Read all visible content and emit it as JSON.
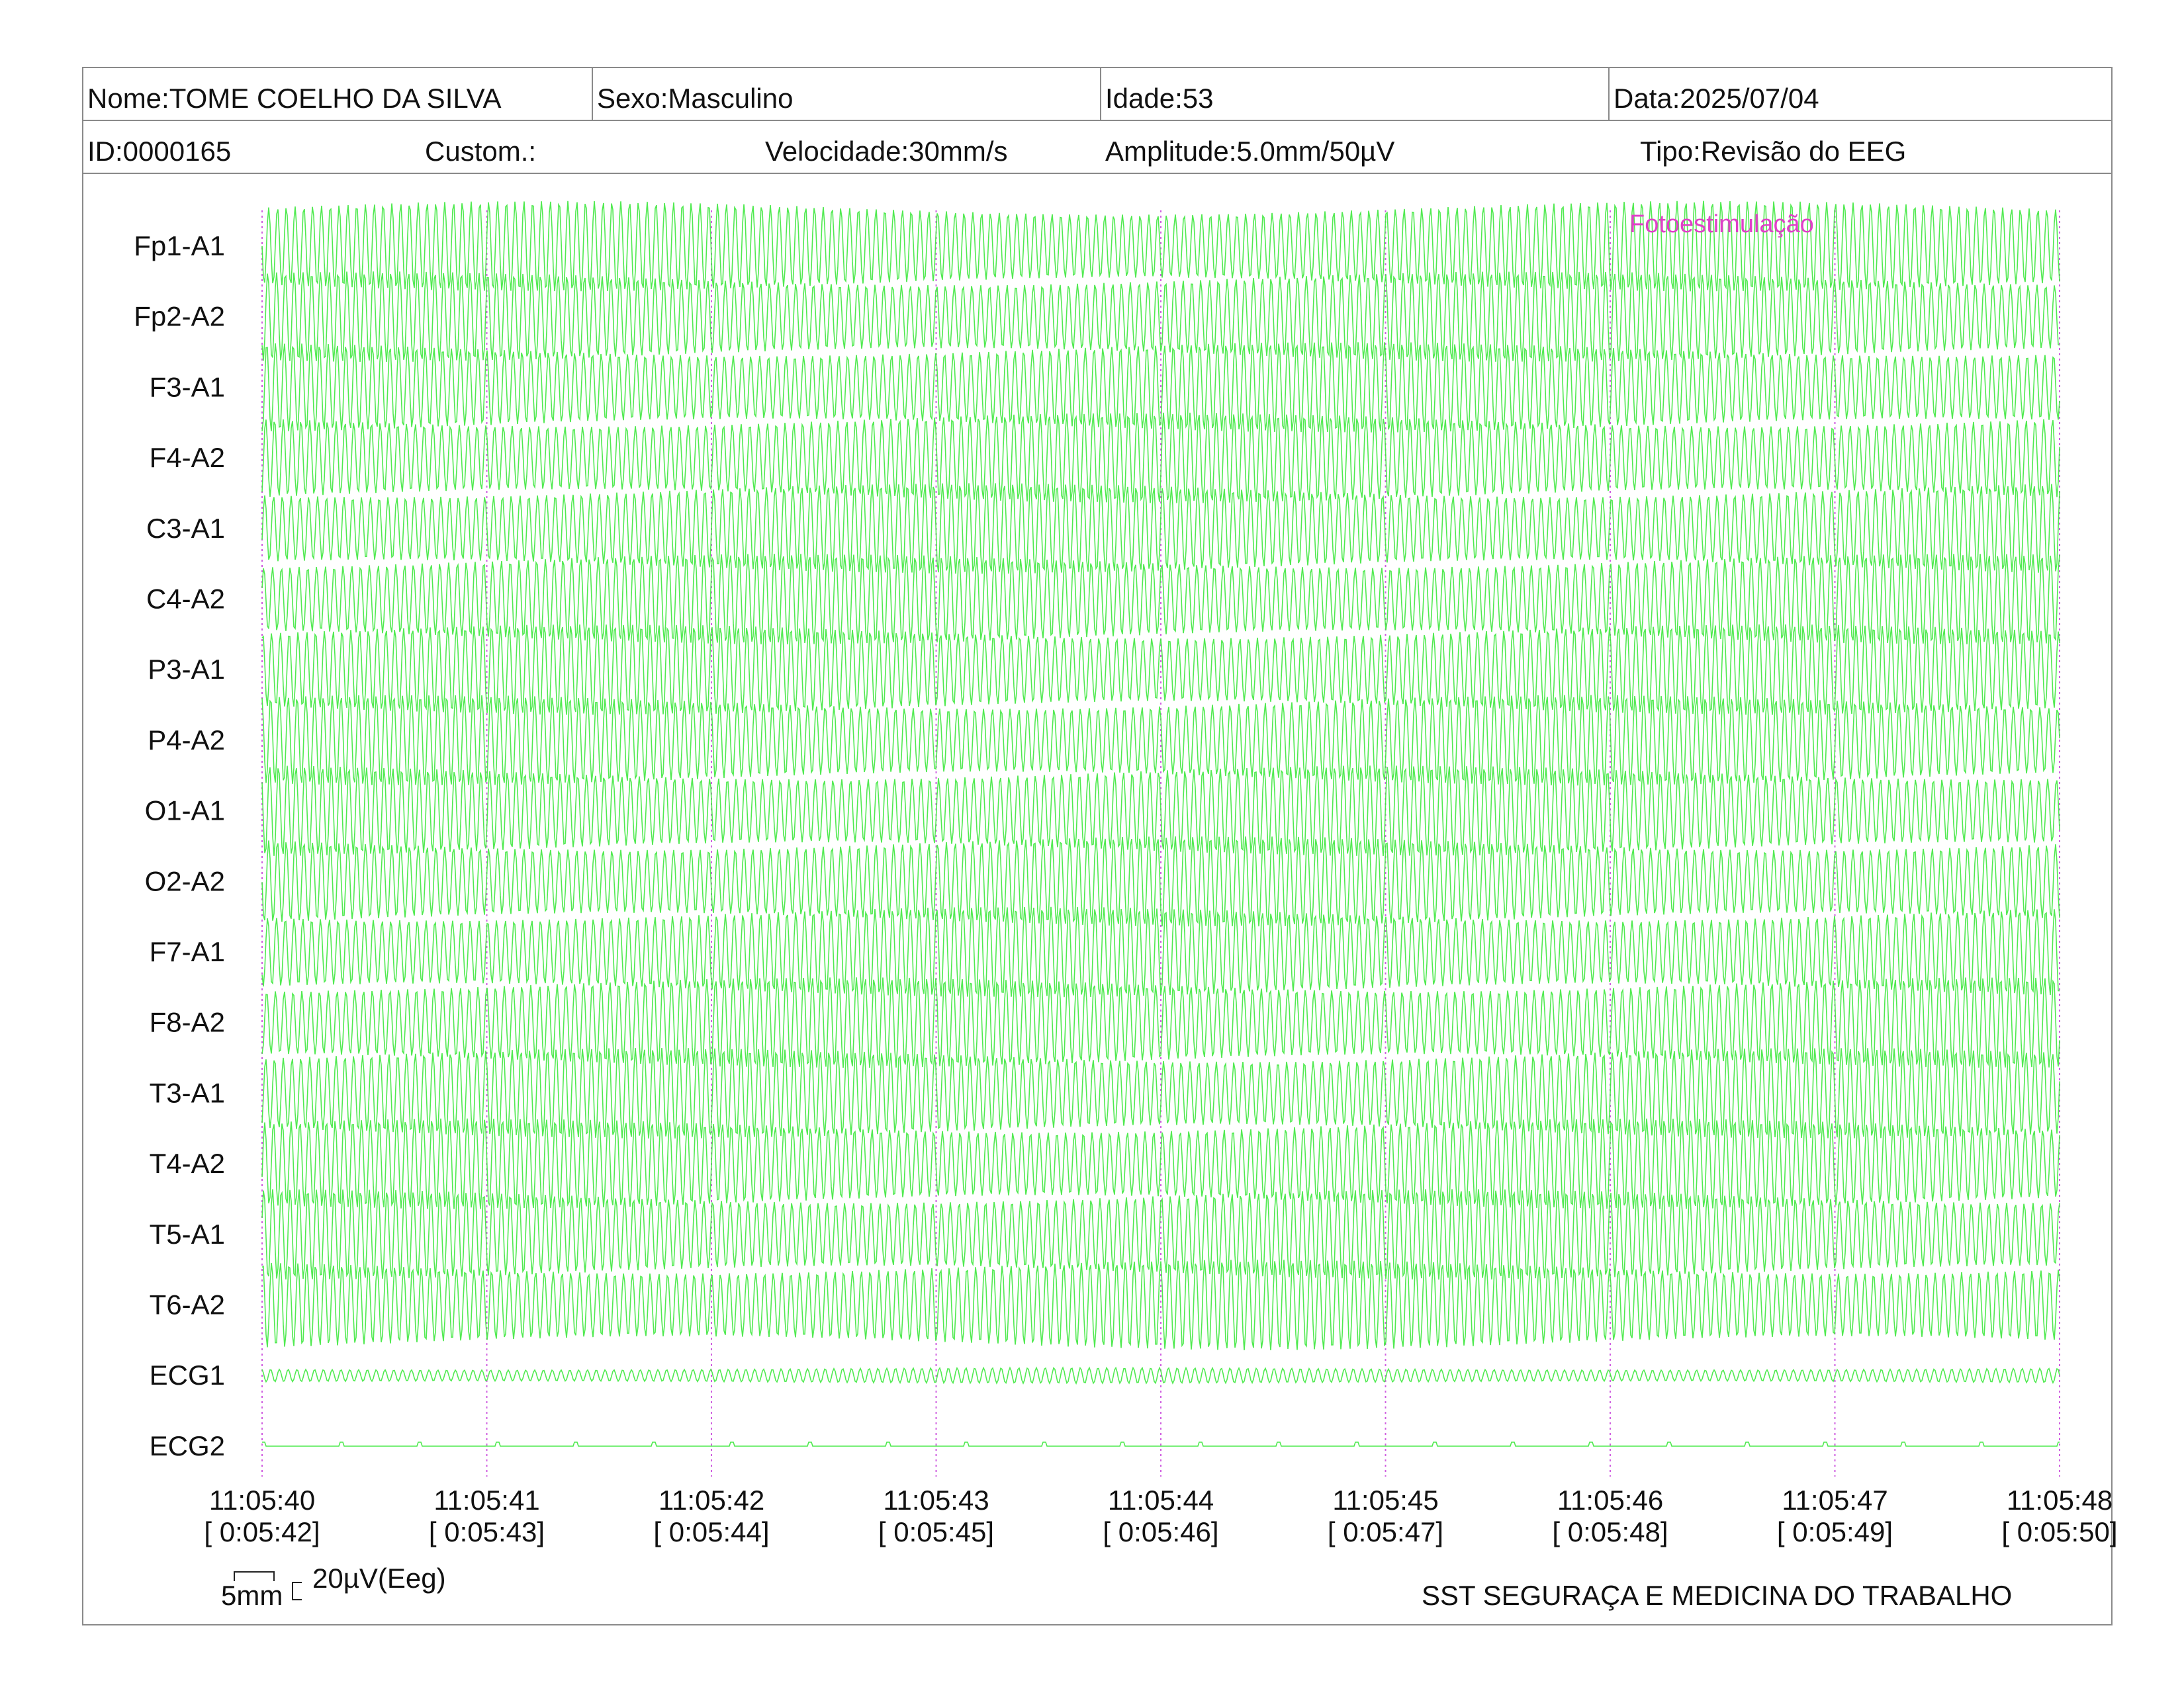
{
  "header": {
    "name": "Nome:TOME COELHO DA SILVA",
    "sex": "Sexo:Masculino",
    "age": "Idade:53",
    "date": "Data:2025/07/04",
    "id": "ID:0000165",
    "custom": "Custom.:",
    "speed": "Velocidade:30mm/s",
    "amplitude": "Amplitude:5.0mm/50µV",
    "type": "Tipo:Revisão do EEG"
  },
  "channels": [
    "Fp1-A1",
    "Fp2-A2",
    "F3-A1",
    "F4-A2",
    "C3-A1",
    "C4-A2",
    "P3-A1",
    "P4-A2",
    "O1-A1",
    "O2-A2",
    "F7-A1",
    "F8-A2",
    "T3-A1",
    "T4-A2",
    "T5-A1",
    "T6-A2",
    "ECG1",
    "ECG2"
  ],
  "event": {
    "label": "Fotoestimulação"
  },
  "time_axis": [
    {
      "clock": "11:05:40",
      "elapsed": "[ 0:05:42]"
    },
    {
      "clock": "11:05:41",
      "elapsed": "[ 0:05:43]"
    },
    {
      "clock": "11:05:42",
      "elapsed": "[ 0:05:44]"
    },
    {
      "clock": "11:05:43",
      "elapsed": "[ 0:05:45]"
    },
    {
      "clock": "11:05:44",
      "elapsed": "[ 0:05:46]"
    },
    {
      "clock": "11:05:45",
      "elapsed": "[ 0:05:47]"
    },
    {
      "clock": "11:05:46",
      "elapsed": "[ 0:05:48]"
    },
    {
      "clock": "11:05:47",
      "elapsed": "[ 0:05:49]"
    },
    {
      "clock": "11:05:48",
      "elapsed": "[ 0:05:50]"
    }
  ],
  "scale": {
    "time_label": "5mm",
    "amplitude_label": "20µV(Eeg)"
  },
  "footer": {
    "organization": "SST SEGURAÇA E MEDICINA DO TRABALHO"
  },
  "colors": {
    "trace": "#3ee83e",
    "marker": "#d060e0",
    "event": "#e040c8",
    "border": "#8a8a8a"
  }
}
